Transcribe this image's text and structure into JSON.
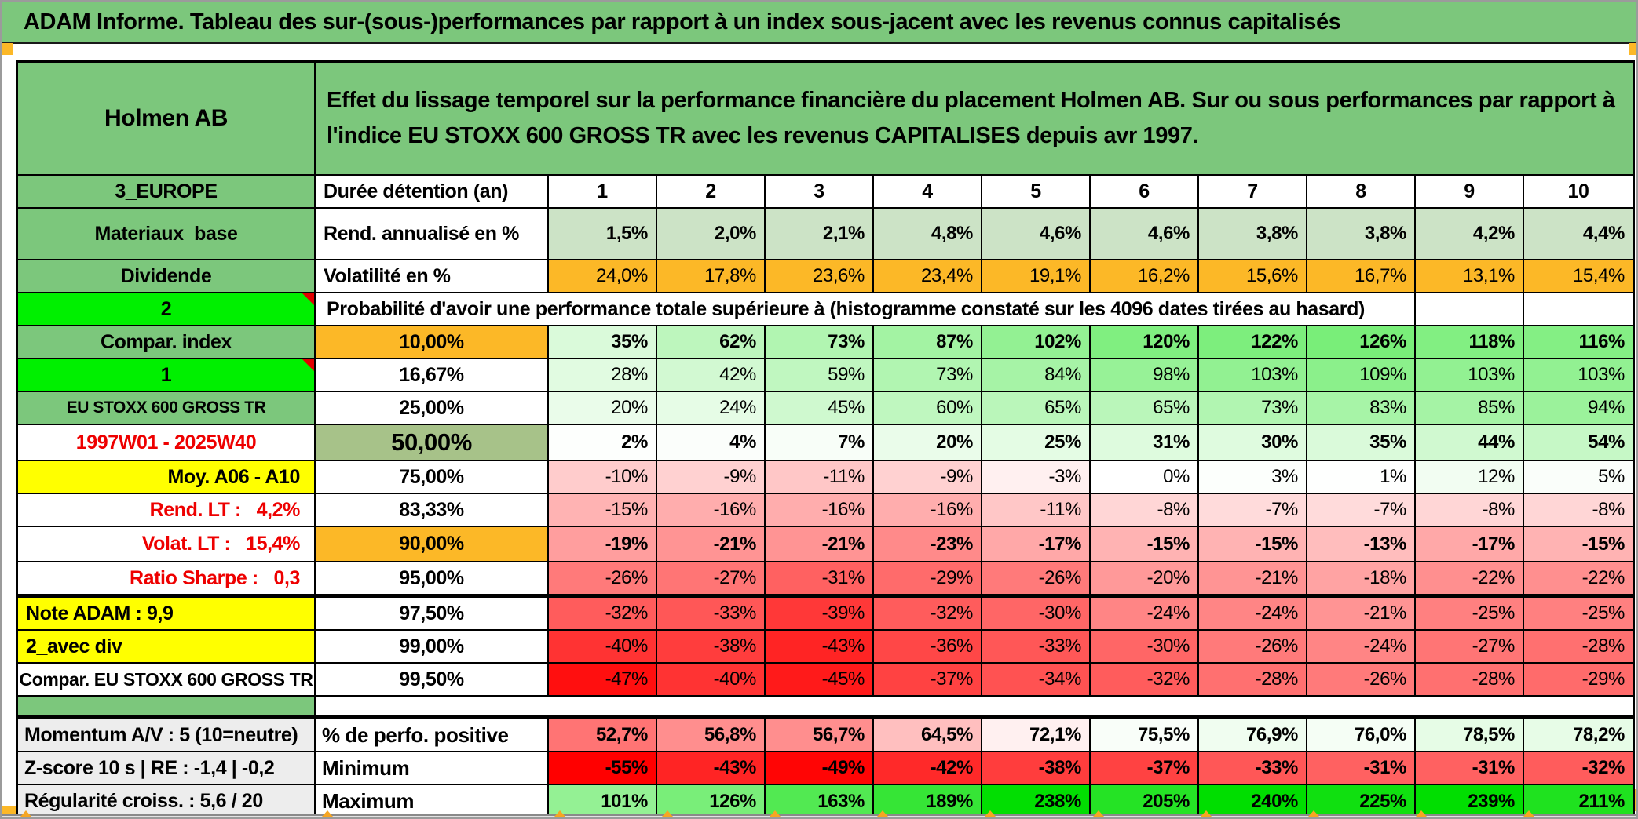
{
  "title": "ADAM Informe. Tableau des sur-(sous-)performances par rapport à un index sous-jacent avec les revenus connus capitalisés",
  "header": {
    "asset_name": "Holmen AB",
    "description": "Effet du lissage temporel sur la performance financière du placement Holmen AB. Sur ou sous performances par rapport à l'indice EU STOXX 600 GROSS TR avec les revenus CAPITALISES depuis avr 1997."
  },
  "columns": [
    "1",
    "2",
    "3",
    "4",
    "5",
    "6",
    "7",
    "8",
    "9",
    "10"
  ],
  "colors": {
    "band_green": "#7cc77c",
    "bright_green": "#00f000",
    "orange": "#fcb827",
    "yellow": "#ffff00",
    "olive_green": "#a7c289",
    "light_green": "#cce3c6",
    "gray_label": "#ededed",
    "full_red": "#ff0000",
    "full_green": "#00de00",
    "red_text": "#ee0000"
  },
  "colormap": {
    "default": {
      "min": -50,
      "mid": 0,
      "max": 240
    },
    "positive_share": {
      "min": 34.5,
      "mid": 74.5,
      "max": 114.5
    }
  },
  "rows": [
    {
      "name": "duration",
      "a": "3_EUROPE",
      "a_bg": "green",
      "b": "Durée détention (an)",
      "b_style": "label",
      "cells": [
        "1",
        "2",
        "3",
        "4",
        "5",
        "6",
        "7",
        "8",
        "9",
        "10"
      ],
      "fmt": "raw",
      "cells_bg": "none",
      "cells_bold": true,
      "cells_align": "center",
      "h": "h42"
    },
    {
      "name": "annual-return",
      "a": "Materiaux_base",
      "a_bg": "green",
      "b": "Rend. annualisé en %",
      "b_style": "label",
      "cells": [
        1.5,
        2.0,
        2.1,
        4.8,
        4.6,
        4.6,
        3.8,
        3.8,
        4.2,
        4.4
      ],
      "fmt": "pct1",
      "cells_bg": "lightgreen",
      "cells_bold": true,
      "h": "h66"
    },
    {
      "name": "volatility",
      "a": "Dividende",
      "a_bg": "green",
      "b": "Volatilité en %",
      "b_style": "label",
      "cells": [
        24.0,
        17.8,
        23.6,
        23.4,
        19.1,
        16.2,
        15.6,
        16.7,
        13.1,
        15.4
      ],
      "fmt": "pct1",
      "cells_bg": "orange",
      "cells_bold": false,
      "h": "h42"
    },
    {
      "name": "probability-note",
      "a": "2",
      "a_bg": "bright",
      "a_tri": true,
      "merged_note": "Probabilité d'avoir une performance totale supérieure à (histogramme constaté sur les 4096 dates tirées au hasard)",
      "blank_cells": 2,
      "h": "h42"
    },
    {
      "name": "p10",
      "a": "Compar. index",
      "a_bg": "green",
      "b": "10,00%",
      "b_bg": "orange",
      "cells": [
        35,
        62,
        73,
        87,
        102,
        120,
        122,
        126,
        118,
        116
      ],
      "fmt": "pct0",
      "cells_bg": "cmap",
      "cmap": "default",
      "cells_bold": true,
      "h": "h42"
    },
    {
      "name": "p16-67",
      "a": "1",
      "a_bg": "bright",
      "a_tri": true,
      "b": "16,67%",
      "cells": [
        28,
        42,
        59,
        73,
        84,
        98,
        103,
        109,
        103,
        103
      ],
      "fmt": "pct0",
      "cells_bg": "cmap",
      "cmap": "default",
      "cells_bold": false,
      "h": "h42"
    },
    {
      "name": "p25",
      "a": "EU STOXX 600 GROSS TR",
      "a_bg": "green",
      "a_size": "sm",
      "b": "25,00%",
      "cells": [
        20,
        24,
        45,
        60,
        65,
        65,
        73,
        83,
        85,
        94
      ],
      "fmt": "pct0",
      "cells_bg": "cmap",
      "cmap": "default",
      "cells_bold": false,
      "h": "h42"
    },
    {
      "name": "p50",
      "a": "1997W01 - 2025W40",
      "a_red": true,
      "b": "50,00%",
      "b_bg": "olive",
      "b_big": true,
      "cells": [
        2,
        4,
        7,
        20,
        25,
        31,
        30,
        35,
        44,
        54
      ],
      "fmt": "pct0",
      "cells_bg": "cmap",
      "cmap": "default",
      "cells_bold": true,
      "h": "h46"
    },
    {
      "name": "p75",
      "a": "Moy. A06 - A10",
      "a_bg": "yellow",
      "a_align": "right",
      "b": "75,00%",
      "cells": [
        -10,
        -9,
        -11,
        -9,
        -3,
        0,
        3,
        1,
        12,
        5
      ],
      "fmt": "pct0",
      "cells_bg": "cmap",
      "cmap": "default",
      "cells_bold": false,
      "h": "h42"
    },
    {
      "name": "p83-33",
      "a": "Rend. LT :   4,2%",
      "a_red": true,
      "a_align": "right",
      "b": "83,33%",
      "cells": [
        -15,
        -16,
        -16,
        -16,
        -11,
        -8,
        -7,
        -7,
        -8,
        -8
      ],
      "fmt": "pct0",
      "cells_bg": "cmap",
      "cmap": "default",
      "cells_bold": false,
      "h": "h42"
    },
    {
      "name": "p90",
      "a": "Volat. LT :   15,4%",
      "a_red": true,
      "a_align": "right",
      "b": "90,00%",
      "b_bg": "orange",
      "cells": [
        -19,
        -21,
        -21,
        -23,
        -17,
        -15,
        -15,
        -13,
        -17,
        -15
      ],
      "fmt": "pct0",
      "cells_bg": "cmap",
      "cmap": "default",
      "cells_bold": true,
      "h": "h45"
    },
    {
      "name": "p95",
      "a": "Ratio Sharpe :   0,3",
      "a_red": true,
      "a_align": "right",
      "b": "95,00%",
      "cells": [
        -26,
        -27,
        -31,
        -29,
        -26,
        -20,
        -21,
        -18,
        -22,
        -22
      ],
      "fmt": "pct0",
      "cells_bg": "cmap",
      "cmap": "default",
      "cells_bold": false,
      "h": "h42"
    },
    {
      "name": "p97-50",
      "a": "Note ADAM : 9,9",
      "a_bg": "yellow",
      "a_align": "left",
      "b": "97,50%",
      "cells": [
        -32,
        -33,
        -39,
        -32,
        -30,
        -24,
        -24,
        -21,
        -25,
        -25
      ],
      "fmt": "pct0",
      "cells_bg": "cmap",
      "cmap": "default",
      "cells_bold": false,
      "h": "h42",
      "thick_top": true
    },
    {
      "name": "p99",
      "a": "2_avec div",
      "a_bg": "yellow",
      "a_align": "left",
      "b": "99,00%",
      "cells": [
        -40,
        -38,
        -43,
        -36,
        -33,
        -30,
        -26,
        -24,
        -27,
        -28
      ],
      "fmt": "pct0",
      "cells_bg": "cmap",
      "cmap": "default",
      "cells_bold": false,
      "h": "h42"
    },
    {
      "name": "p99-50",
      "a": "Compar. EU STOXX 600 GROSS TR",
      "a_size": "md",
      "b": "99,50%",
      "cells": [
        -47,
        -40,
        -45,
        -37,
        -34,
        -32,
        -28,
        -26,
        -28,
        -29
      ],
      "fmt": "pct0",
      "cells_bg": "cmap",
      "cmap": "default",
      "cells_bold": false,
      "h": "h42"
    },
    {
      "name": "separator",
      "separator": true,
      "a": "",
      "a_bg": "green",
      "h": "h26"
    },
    {
      "name": "positive-share",
      "a": "Momentum A/V : 5 (10=neutre)",
      "a_bg": "gray",
      "a_align": "left",
      "a_bottom": true,
      "b": "% de perfo. positive",
      "b_style": "bottom",
      "cells": [
        52.7,
        56.8,
        56.7,
        64.5,
        72.1,
        75.5,
        76.9,
        76.0,
        78.5,
        78.2
      ],
      "fmt": "pct1",
      "cells_bg": "cmap",
      "cmap": "positive_share",
      "cells_bold": true,
      "h": "h42",
      "thick_top": true
    },
    {
      "name": "minimum",
      "a": "Z-score 10 s | RE : -1,4 | -0,2",
      "a_bg": "gray",
      "a_align": "left",
      "a_bottom": true,
      "b": "Minimum",
      "b_style": "bottom",
      "cells": [
        -55,
        -43,
        -49,
        -42,
        -38,
        -37,
        -33,
        -31,
        -31,
        -32
      ],
      "fmt": "pct0",
      "cells_bg": "cmap",
      "cmap": "default",
      "cells_bold": true,
      "h": "h42"
    },
    {
      "name": "maximum",
      "a": "Régularité croiss. : 5,6 / 20",
      "a_bg": "gray",
      "a_align": "left",
      "a_bottom": true,
      "b": "Maximum",
      "b_style": "bottom",
      "cells": [
        101,
        126,
        163,
        189,
        238,
        205,
        240,
        225,
        239,
        211
      ],
      "fmt": "pct0",
      "cells_bg": "cmap",
      "cmap": "default",
      "cells_bold": true,
      "h": "h43"
    }
  ]
}
